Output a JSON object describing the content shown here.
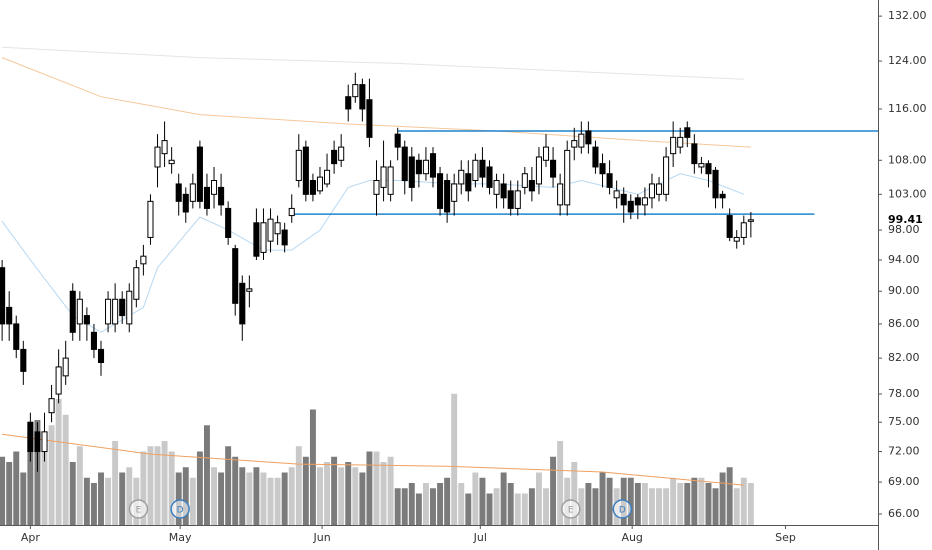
{
  "chart_data": {
    "type": "candlestick",
    "yscale": "log",
    "ylim": [
      65,
      135
    ],
    "yticks": [
      {
        "value": 132,
        "label": "132.00"
      },
      {
        "value": 124,
        "label": "124.00"
      },
      {
        "value": 116,
        "label": "116.00"
      },
      {
        "value": 108,
        "label": "108.00"
      },
      {
        "value": 103,
        "label": "103.00"
      },
      {
        "value": 98,
        "label": "98.00"
      },
      {
        "value": 94,
        "label": "94.00"
      },
      {
        "value": 90,
        "label": "90.00"
      },
      {
        "value": 86,
        "label": "86.00"
      },
      {
        "value": 82,
        "label": "82.00"
      },
      {
        "value": 78,
        "label": "78.00"
      },
      {
        "value": 75,
        "label": "75.00"
      },
      {
        "value": 72,
        "label": "72.00"
      },
      {
        "value": 69,
        "label": "69.00"
      },
      {
        "value": 66,
        "label": "66.00"
      }
    ],
    "last_price": 99.41,
    "xlim": [
      -0.3,
      124
    ],
    "xticks": [
      {
        "value": 4,
        "label": "Apr"
      },
      {
        "value": 25.2,
        "label": "May"
      },
      {
        "value": 45.3,
        "label": "Jun"
      },
      {
        "value": 67.7,
        "label": "Jul"
      },
      {
        "value": 89.2,
        "label": "Aug"
      },
      {
        "value": 110.9,
        "label": "Sep"
      }
    ],
    "open": [
      93,
      88,
      86,
      83,
      75,
      74,
      72,
      76,
      78,
      80,
      90,
      86,
      87,
      85,
      83,
      86,
      86,
      89,
      86,
      89,
      93.5,
      97,
      107,
      109,
      107.5,
      104.5,
      103,
      102,
      110,
      104,
      103,
      104,
      101,
      95.5,
      91,
      90,
      99,
      95,
      96.5,
      97.5,
      98,
      100,
      105,
      110,
      105,
      103.5,
      104.5,
      109.5,
      108,
      118,
      118,
      120,
      117.5,
      103,
      104,
      103,
      112,
      110,
      108.5,
      108,
      106,
      109,
      106,
      105,
      102,
      104.5,
      106,
      105,
      108,
      107,
      103,
      104.5,
      103.5,
      101,
      104,
      105,
      104.5,
      108,
      108,
      101.5,
      101.5,
      110,
      110,
      112.5,
      110,
      107.5,
      106,
      102.5,
      103,
      102,
      102.5,
      101.5,
      102.5,
      103,
      103,
      109,
      110,
      113,
      110.5,
      107,
      107.5,
      106.5,
      103,
      100,
      96.5,
      97,
      99.2
    ],
    "high": [
      94,
      90,
      87,
      84,
      76,
      75,
      76,
      79,
      83,
      84,
      91,
      90,
      88,
      86,
      84,
      90,
      91,
      90,
      91,
      94,
      96,
      103,
      112,
      114,
      110,
      106,
      104,
      106,
      111,
      106,
      107,
      106,
      102,
      96,
      92,
      92,
      101,
      101,
      101,
      100,
      99,
      103,
      112,
      111,
      106,
      107,
      109,
      111,
      112,
      120,
      122,
      121,
      121,
      108,
      111,
      108,
      113,
      111,
      110,
      109,
      110,
      110,
      107,
      106,
      106,
      108,
      108,
      109,
      110,
      108,
      106,
      106,
      105,
      105,
      107,
      107,
      110,
      112,
      110,
      106,
      111,
      113,
      114,
      114,
      111,
      109,
      108,
      105,
      104,
      103,
      103,
      104,
      106,
      105.5,
      110,
      114,
      113,
      114,
      112,
      108.5,
      108,
      107,
      103.5,
      101,
      98,
      100,
      100.5
    ],
    "low": [
      84,
      84,
      82,
      79,
      71,
      70,
      71,
      75,
      77,
      79,
      84,
      84,
      84,
      82,
      80,
      85,
      85,
      86,
      85,
      88,
      92,
      96,
      104,
      107,
      106,
      100,
      99,
      101,
      101,
      100,
      101,
      100,
      96,
      87,
      84,
      88,
      94,
      94,
      95,
      96,
      95,
      99,
      104,
      102,
      102,
      103,
      104,
      106,
      107,
      114,
      117,
      114,
      110,
      100,
      102,
      102,
      108,
      103,
      102,
      104,
      105,
      104,
      100,
      99,
      100,
      103,
      102,
      104,
      104,
      103,
      101,
      101,
      100,
      100,
      103,
      102,
      103,
      107,
      104,
      100,
      100,
      108,
      109,
      109,
      106,
      104,
      103,
      101,
      99,
      99.5,
      99.5,
      100,
      101,
      102,
      102,
      107,
      109,
      110,
      106,
      106,
      104,
      101,
      101,
      96.5,
      95.5,
      96,
      97
    ],
    "close": [
      86,
      86,
      83,
      80.5,
      72,
      72,
      74,
      77.5,
      81,
      82,
      85,
      89,
      86,
      83,
      81.5,
      89,
      89,
      87,
      90,
      93,
      94.5,
      102,
      110,
      111,
      108,
      102,
      100.5,
      104.5,
      102,
      101,
      105,
      101.5,
      97,
      88.5,
      86,
      90.3,
      94.5,
      99,
      99.5,
      99,
      96,
      101,
      109.5,
      103,
      103,
      105.5,
      106.5,
      107.5,
      110,
      116,
      120,
      116,
      111.5,
      105,
      107,
      107,
      110,
      105,
      104,
      106,
      108,
      105.5,
      101,
      100.5,
      104.5,
      106.5,
      103.5,
      108,
      105.5,
      104,
      105,
      102.5,
      101,
      103.5,
      106,
      103.5,
      108.5,
      110,
      105.5,
      104.5,
      109.5,
      111,
      112,
      110.5,
      107,
      106,
      104,
      103.5,
      101.5,
      100.5,
      101.5,
      102.5,
      104.5,
      104.5,
      108.5,
      111.5,
      111.5,
      111.5,
      107.5,
      107.5,
      106,
      102.5,
      102.5,
      97,
      97,
      99,
      99.41
    ],
    "volume": [
      13,
      12,
      14,
      10,
      18,
      20,
      17,
      19,
      24,
      21,
      12,
      15,
      9,
      8,
      10,
      9,
      16,
      10,
      11,
      9,
      14,
      15,
      15,
      16,
      14,
      10,
      11,
      9,
      14,
      19,
      11,
      10,
      15,
      13,
      11,
      10,
      11,
      10,
      9,
      9,
      10,
      11,
      15,
      13,
      22,
      11,
      12,
      13,
      11,
      12,
      11,
      10,
      14,
      14,
      12,
      13,
      7,
      7,
      8,
      6,
      8,
      7,
      8,
      9,
      25,
      8,
      6,
      10,
      9,
      6,
      7,
      10,
      8,
      6,
      6,
      7,
      10,
      7,
      13,
      16,
      9,
      12,
      7,
      8,
      7,
      10,
      9,
      7,
      9,
      9,
      8,
      8,
      7,
      7,
      7,
      9,
      8,
      8,
      9,
      9,
      8,
      7,
      10,
      11,
      7,
      9,
      8
    ],
    "volume_lim": [
      0,
      100
    ],
    "colors": {
      "up": "#ffffff",
      "down": "#000000",
      "outline": "#000000",
      "volume_up": "#c9c9c9",
      "volume_down": "#7b7b7b"
    },
    "lines": [
      {
        "color": "#f5c89a",
        "x": [
          0,
          14,
          28,
          49,
          70,
          92,
          106
        ],
        "values": [
          124.6,
          118,
          115.1,
          113.6,
          112.5,
          110.9,
          110
        ]
      },
      {
        "color": "#e4e4e4",
        "x": [
          0,
          28,
          56,
          85,
          105
        ],
        "values": [
          126.4,
          124.6,
          123.6,
          122,
          120.9
        ]
      },
      {
        "color": "#b7d8f2",
        "x": [
          0,
          4,
          10,
          14,
          20,
          22,
          28,
          32,
          37,
          41,
          45,
          49,
          52,
          56,
          64,
          70,
          78,
          82,
          86,
          90,
          96,
          100,
          105
        ],
        "values": [
          99.2,
          94,
          87,
          85,
          88,
          93,
          99.8,
          98,
          95.3,
          95.3,
          98,
          104,
          105,
          105,
          104.5,
          104.5,
          104,
          105,
          104,
          103,
          106,
          105,
          103
        ]
      },
      {
        "color": "#f0a060",
        "axis": "volume",
        "x": [
          0,
          21,
          42,
          63,
          85,
          105
        ],
        "values": [
          17.3,
          13.5,
          11.6,
          11.2,
          10.1,
          7.6
        ]
      }
    ],
    "levels": [
      {
        "value": 112.5,
        "from": 56,
        "to": 124,
        "color": "#1f84cf"
      },
      {
        "value": 100.2,
        "from": 41,
        "to": 115,
        "color": "#1f84cf"
      }
    ],
    "events": [
      {
        "label": "E",
        "x": 19.3,
        "color": "#9e9e9e"
      },
      {
        "label": "D",
        "x": 25.2,
        "color": "#3d7fc1"
      },
      {
        "label": "E",
        "x": 80.5,
        "color": "#9e9e9e"
      },
      {
        "label": "D",
        "x": 87.8,
        "color": "#3d7fc1"
      }
    ]
  }
}
